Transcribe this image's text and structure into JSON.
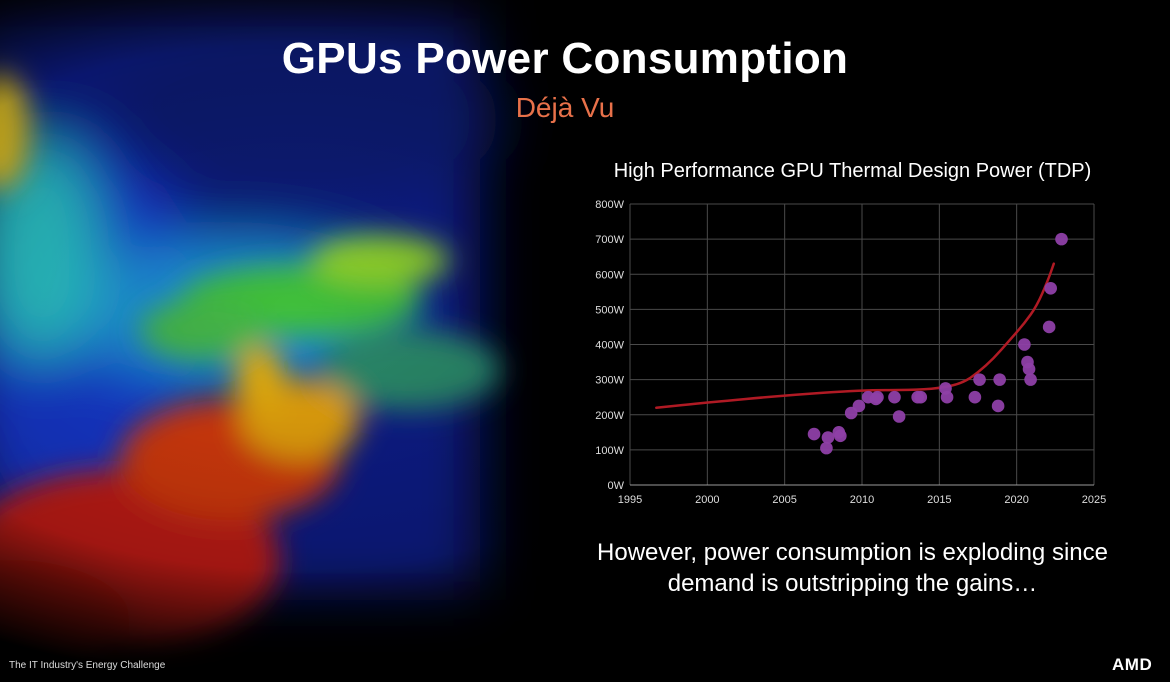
{
  "slide": {
    "title": "GPUs Power Consumption",
    "subtitle": "Déjà Vu",
    "caption_line1": "However, power consumption is exploding since",
    "caption_line2": "demand is outstripping the gains…",
    "footer": "The IT Industry's Energy Challenge",
    "logo_text": "AMD"
  },
  "colors": {
    "subtitle": "#e8714a",
    "trend_line": "#b01a24",
    "points": "#8e3fa6"
  },
  "chart_data": {
    "type": "scatter",
    "title": "High Performance GPU Thermal Design Power (TDP)",
    "xlabel": "",
    "ylabel": "",
    "xlim": [
      1995,
      2025
    ],
    "ylim": [
      0,
      800
    ],
    "x_ticks": [
      "1995",
      "2000",
      "2005",
      "2010",
      "2015",
      "2020",
      "2025"
    ],
    "y_ticks": [
      "0W",
      "100W",
      "200W",
      "300W",
      "400W",
      "500W",
      "600W",
      "700W",
      "800W"
    ],
    "grid": true,
    "series": [
      {
        "kind": "points",
        "x": [
          2006.9,
          2007.7,
          2007.8,
          2008.5,
          2008.6,
          2009.3,
          2009.8,
          2010.4,
          2010.9,
          2011.0,
          2012.1,
          2012.4,
          2013.6,
          2013.8,
          2015.4,
          2015.5,
          2017.3,
          2017.6,
          2018.8,
          2018.9,
          2020.5,
          2020.7,
          2020.8,
          2020.9,
          2022.1,
          2022.2,
          2022.9
        ],
        "y": [
          145,
          105,
          135,
          150,
          140,
          205,
          225,
          250,
          245,
          250,
          250,
          195,
          250,
          250,
          275,
          250,
          250,
          300,
          225,
          300,
          400,
          350,
          330,
          300,
          450,
          560,
          700
        ]
      },
      {
        "kind": "trend",
        "x": [
          1996.7,
          2000,
          2005,
          2010,
          2013,
          2015,
          2016.5,
          2017.5,
          2018.5,
          2019.5,
          2020.5,
          2021.3,
          2022,
          2022.4
        ],
        "y": [
          220,
          235,
          255,
          270,
          270,
          275,
          290,
          320,
          360,
          410,
          460,
          510,
          580,
          630
        ]
      }
    ]
  }
}
